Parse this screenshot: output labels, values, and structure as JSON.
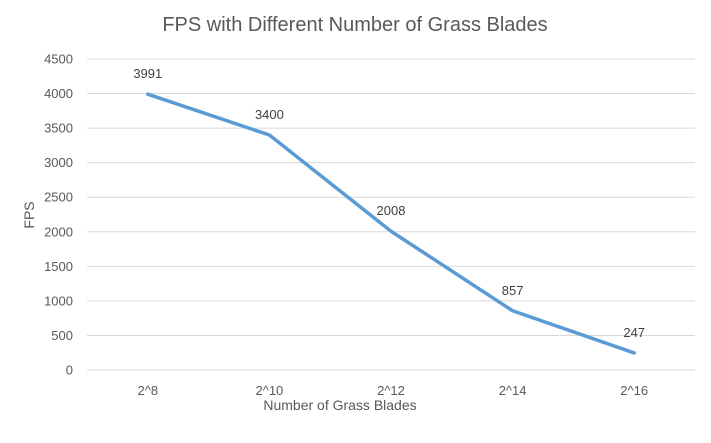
{
  "chart_data": {
    "type": "line",
    "title": "FPS with Different Number of Grass Blades",
    "xlabel": "Number of Grass Blades",
    "ylabel": "FPS",
    "categories": [
      "2^8",
      "2^10",
      "2^12",
      "2^14",
      "2^16"
    ],
    "series": [
      {
        "values": [
          3991,
          3400,
          2008,
          857,
          247
        ],
        "color": "#5b9bd5"
      }
    ],
    "data_labels": [
      "3991",
      "3400",
      "2008",
      "857",
      "247"
    ],
    "ylim": [
      0,
      4500
    ],
    "yticks": [
      0,
      500,
      1000,
      1500,
      2000,
      2500,
      3000,
      3500,
      4000,
      4500
    ],
    "grid": true,
    "legend": "none"
  }
}
